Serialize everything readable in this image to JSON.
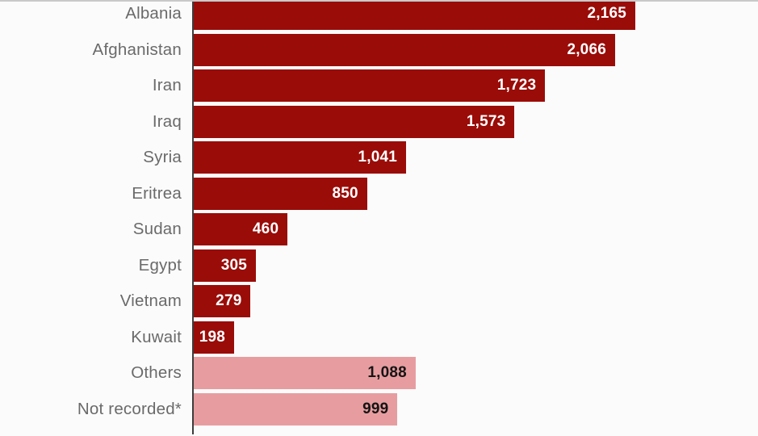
{
  "chart_data": {
    "type": "bar",
    "orientation": "horizontal",
    "title": "",
    "xlabel": "",
    "ylabel": "",
    "grid": false,
    "legend": false,
    "value_labels_position": "inside-end",
    "max_value": 2165,
    "categories": [
      "Albania",
      "Afghanistan",
      "Iran",
      "Iraq",
      "Syria",
      "Eritrea",
      "Sudan",
      "Egypt",
      "Vietnam",
      "Kuwait",
      "Others",
      "Not recorded*"
    ],
    "values": [
      2165,
      2066,
      1723,
      1573,
      1041,
      850,
      460,
      305,
      279,
      198,
      1088,
      999
    ],
    "bars": [
      {
        "label": "Albania",
        "value": 2165,
        "display": "2,165",
        "variant": "main"
      },
      {
        "label": "Afghanistan",
        "value": 2066,
        "display": "2,066",
        "variant": "main"
      },
      {
        "label": "Iran",
        "value": 1723,
        "display": "1,723",
        "variant": "main"
      },
      {
        "label": "Iraq",
        "value": 1573,
        "display": "1,573",
        "variant": "main"
      },
      {
        "label": "Syria",
        "value": 1041,
        "display": "1,041",
        "variant": "main"
      },
      {
        "label": "Eritrea",
        "value": 850,
        "display": "850",
        "variant": "main"
      },
      {
        "label": "Sudan",
        "value": 460,
        "display": "460",
        "variant": "main"
      },
      {
        "label": "Egypt",
        "value": 305,
        "display": "305",
        "variant": "main"
      },
      {
        "label": "Vietnam",
        "value": 279,
        "display": "279",
        "variant": "main"
      },
      {
        "label": "Kuwait",
        "value": 198,
        "display": "198",
        "variant": "main"
      },
      {
        "label": "Others",
        "value": 1088,
        "display": "1,088",
        "variant": "muted"
      },
      {
        "label": "Not recorded*",
        "value": 999,
        "display": "999",
        "variant": "muted"
      }
    ],
    "colors": {
      "main": "#9a0c08",
      "muted": "#e79da0"
    },
    "value_text_colors": {
      "main": "#ffffff",
      "muted": "#141414"
    },
    "label_color": "#6a6a6a",
    "axis_line_color": "#3d3d3d",
    "top_rule_color": "#c9c9c9",
    "background": "#fbfbfb"
  }
}
